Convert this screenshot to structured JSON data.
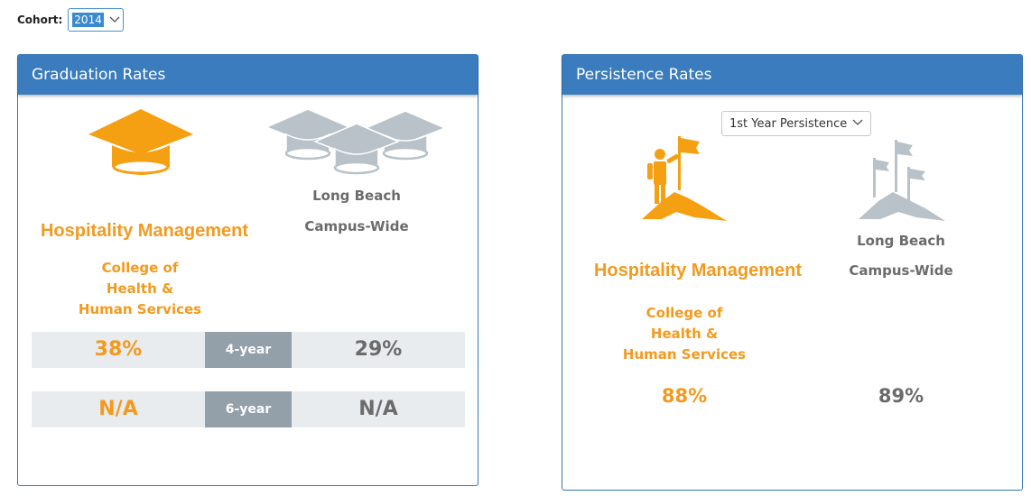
{
  "cohort": {
    "label": "Cohort:",
    "value": "2014"
  },
  "graduation": {
    "title": "Graduation Rates",
    "program": "Hospitality Management",
    "college_lines": [
      "College of",
      "Health &",
      "Human Services"
    ],
    "campus_lines": [
      "Long Beach",
      "Campus-Wide"
    ],
    "rows": [
      {
        "program_rate": "38%",
        "period": "4-year",
        "campus_rate": "29%"
      },
      {
        "program_rate": "N/A",
        "period": "6-year",
        "campus_rate": "N/A"
      }
    ]
  },
  "persistence": {
    "title": "Persistence Rates",
    "selected_option": "1st Year Persistence",
    "program": "Hospitality Management",
    "college_lines": [
      "College of",
      "Health &",
      "Human Services"
    ],
    "campus_lines": [
      "Long Beach",
      "Campus-Wide"
    ],
    "program_rate": "88%",
    "campus_rate": "89%"
  },
  "colors": {
    "accent": "#f39a1e",
    "header": "#3a7cbd",
    "neutral": "#b9c2c9",
    "period_badge": "#939fa9"
  },
  "icons": [
    "chevron-down-icon",
    "graduation-cap-icon",
    "graduation-caps-group-icon",
    "summit-flag-person-icon",
    "summit-flags-icon"
  ]
}
